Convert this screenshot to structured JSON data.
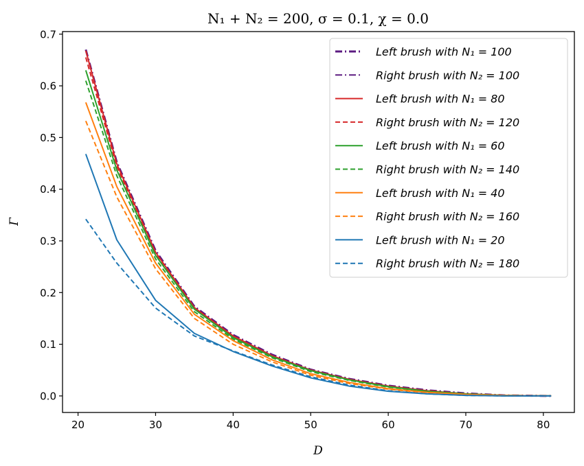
{
  "chart_data": {
    "type": "line",
    "title": "N₁ + N₂ = 200,  σ = 0.1,  χ = 0.0",
    "xlabel": "D",
    "ylabel": "Γ",
    "xlim": [
      18,
      84
    ],
    "ylim": [
      -0.032,
      0.705
    ],
    "xticks": [
      20,
      30,
      40,
      50,
      60,
      70,
      80
    ],
    "xtick_labels": [
      "20",
      "30",
      "40",
      "50",
      "60",
      "70",
      "80"
    ],
    "yticks": [
      0.0,
      0.1,
      0.2,
      0.3,
      0.4,
      0.5,
      0.6,
      0.7
    ],
    "ytick_labels": [
      "0.0",
      "0.1",
      "0.2",
      "0.3",
      "0.4",
      "0.5",
      "0.6",
      "0.7"
    ],
    "grid": false,
    "legend_position": "upper right",
    "x": [
      21,
      25,
      30,
      35,
      40,
      45,
      50,
      55,
      60,
      65,
      70,
      75,
      81
    ],
    "series": [
      {
        "name": "Left brush with N₁ = 100",
        "color": "#5b1a80",
        "dash": "dashdot",
        "width": 3,
        "values": [
          0.67,
          0.452,
          0.281,
          0.173,
          0.118,
          0.08,
          0.051,
          0.033,
          0.02,
          0.011,
          0.005,
          0.001,
          0.0
        ]
      },
      {
        "name": "Right brush with N₂ = 100",
        "color": "#5b1a80",
        "dash": "dashdot",
        "width": 2,
        "values": [
          0.67,
          0.452,
          0.281,
          0.173,
          0.118,
          0.08,
          0.051,
          0.033,
          0.02,
          0.011,
          0.005,
          0.001,
          0.0
        ]
      },
      {
        "name": "Left brush with N₁ = 80",
        "color": "#d62728",
        "dash": "solid",
        "width": 2,
        "values": [
          0.668,
          0.449,
          0.278,
          0.171,
          0.116,
          0.078,
          0.05,
          0.032,
          0.019,
          0.01,
          0.004,
          0.001,
          0.0
        ]
      },
      {
        "name": "Right brush with N₂ = 120",
        "color": "#d62728",
        "dash": "dashed",
        "width": 2,
        "values": [
          0.655,
          0.444,
          0.275,
          0.17,
          0.116,
          0.078,
          0.05,
          0.032,
          0.019,
          0.01,
          0.004,
          0.001,
          0.0
        ]
      },
      {
        "name": "Left brush with N₁ = 60",
        "color": "#2ca02c",
        "dash": "solid",
        "width": 2,
        "values": [
          0.63,
          0.437,
          0.272,
          0.168,
          0.113,
          0.076,
          0.049,
          0.031,
          0.018,
          0.009,
          0.004,
          0.001,
          0.0
        ]
      },
      {
        "name": "Right brush with N₂ = 140",
        "color": "#2ca02c",
        "dash": "dashed",
        "width": 2,
        "values": [
          0.61,
          0.426,
          0.265,
          0.163,
          0.11,
          0.074,
          0.047,
          0.03,
          0.017,
          0.009,
          0.003,
          0.001,
          0.0
        ]
      },
      {
        "name": "Left brush with N₁ = 40",
        "color": "#ff7f0e",
        "dash": "solid",
        "width": 2,
        "values": [
          0.568,
          0.405,
          0.257,
          0.158,
          0.107,
          0.07,
          0.043,
          0.026,
          0.014,
          0.007,
          0.003,
          0.001,
          0.0
        ]
      },
      {
        "name": "Right brush with N₂ = 160",
        "color": "#ff7f0e",
        "dash": "dashed",
        "width": 2,
        "values": [
          0.532,
          0.385,
          0.246,
          0.15,
          0.1,
          0.066,
          0.04,
          0.024,
          0.013,
          0.006,
          0.002,
          0.0,
          0.0
        ]
      },
      {
        "name": "Left brush with N₁ = 20",
        "color": "#1f77b4",
        "dash": "solid",
        "width": 2,
        "values": [
          0.468,
          0.302,
          0.185,
          0.121,
          0.086,
          0.058,
          0.035,
          0.019,
          0.009,
          0.004,
          0.001,
          0.0,
          0.0
        ]
      },
      {
        "name": "Right brush with N₂ = 180",
        "color": "#1f77b4",
        "dash": "dashed",
        "width": 2,
        "values": [
          0.342,
          0.257,
          0.17,
          0.116,
          0.087,
          0.06,
          0.037,
          0.021,
          0.01,
          0.004,
          0.001,
          0.0,
          0.0
        ]
      }
    ]
  }
}
